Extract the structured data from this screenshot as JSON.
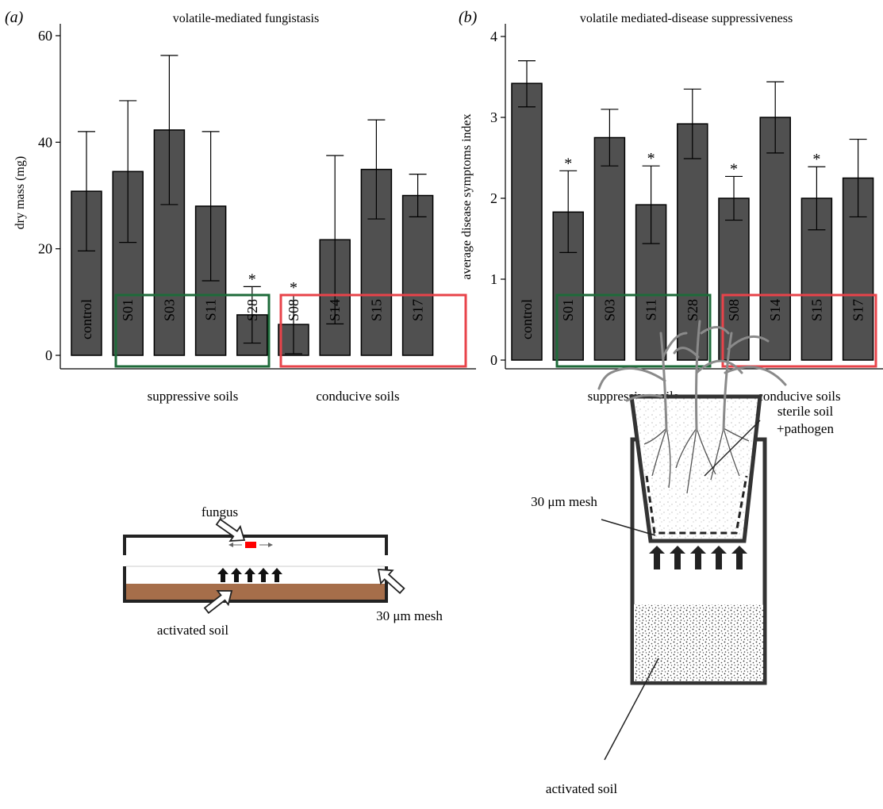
{
  "charts": [
    {
      "panel_label": "(a)",
      "title": "volatile-mediated fungistasis",
      "ylabel": "dry mass (mg)",
      "ylim": [
        0,
        60
      ],
      "yticks": [
        0,
        20,
        40,
        60
      ],
      "groups": [
        "suppressive soils",
        "conducive soils"
      ]
    },
    {
      "panel_label": "(b)",
      "title": "volatile mediated-disease suppressiveness",
      "ylabel": "average disease symptoms index",
      "ylim": [
        0,
        4
      ],
      "yticks": [
        0,
        1,
        2,
        3,
        4
      ],
      "groups": [
        "suppressive soils",
        "conducive soils"
      ]
    }
  ],
  "chart_data": [
    {
      "type": "bar",
      "title": "volatile-mediated fungistasis",
      "xlabel": "",
      "ylabel": "dry mass (mg)",
      "ylim": [
        0,
        60
      ],
      "categories": [
        "control",
        "S01",
        "S03",
        "S11",
        "S28",
        "S08",
        "S14",
        "S15",
        "S17"
      ],
      "values": [
        30.8,
        34.5,
        42.3,
        28.0,
        7.6,
        5.8,
        21.7,
        34.9,
        30.0
      ],
      "err_high": [
        42.0,
        47.8,
        56.3,
        42.0,
        12.9,
        11.3,
        37.5,
        44.2,
        34.0
      ],
      "err_low": [
        19.6,
        21.2,
        28.3,
        14.0,
        2.3,
        0.3,
        5.9,
        25.6,
        26.0
      ],
      "significant": [
        false,
        false,
        false,
        false,
        true,
        true,
        false,
        false,
        false
      ],
      "star_label": "*"
    },
    {
      "type": "bar",
      "title": "volatile mediated-disease suppressiveness",
      "xlabel": "",
      "ylabel": "average disease symptoms index",
      "ylim": [
        0,
        4
      ],
      "categories": [
        "control",
        "S01",
        "S03",
        "S11",
        "S28",
        "S08",
        "S14",
        "S15",
        "S17"
      ],
      "values": [
        3.42,
        1.83,
        2.75,
        1.92,
        2.92,
        2.0,
        3.0,
        2.0,
        2.25
      ],
      "err_high": [
        3.7,
        2.34,
        3.1,
        2.4,
        3.35,
        2.27,
        3.44,
        2.39,
        2.73
      ],
      "err_low": [
        3.13,
        1.33,
        2.4,
        1.44,
        2.49,
        1.73,
        2.56,
        1.61,
        1.77
      ],
      "significant": [
        false,
        true,
        false,
        true,
        false,
        true,
        false,
        true,
        false
      ],
      "star_label": "*"
    }
  ],
  "colors": {
    "bar_fill": "#505050",
    "suppressive_box": "#1e6b3a",
    "conducive_box": "#e8434a",
    "soil": "#a66e4a",
    "fungus": "#ff0000",
    "axis": "#000000"
  },
  "diagram_a": {
    "fungus_label": "fungus",
    "soil_label": "activated soil",
    "mesh_label": "30 μm mesh"
  },
  "diagram_b": {
    "sterile_label_line1": "sterile soil",
    "sterile_label_line2": "+pathogen",
    "mesh_label": "30 μm mesh",
    "soil_label": "activated soil"
  }
}
